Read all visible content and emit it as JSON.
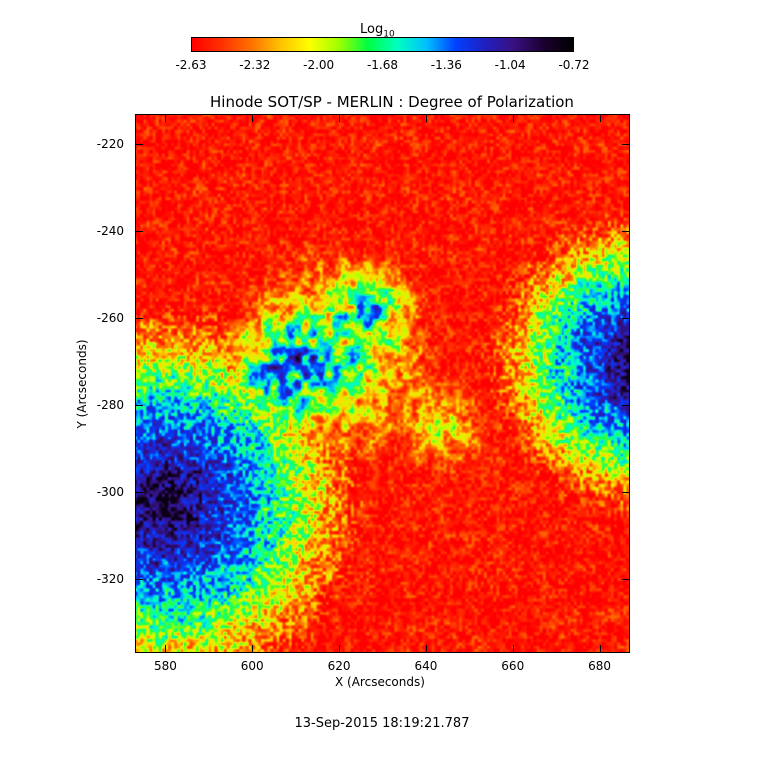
{
  "colorbar": {
    "title_base": "Log",
    "title_sub": "10",
    "tick_labels": [
      "-2.63",
      "-2.32",
      "-2.00",
      "-1.68",
      "-1.36",
      "-1.04",
      "-0.72"
    ],
    "colors": [
      "#ff0000",
      "#ff3000",
      "#ff7000",
      "#ffc000",
      "#ffff00",
      "#a0ff00",
      "#00ff40",
      "#00ffc0",
      "#00c0ff",
      "#0040ff",
      "#2020c0",
      "#3a1080",
      "#1a0030",
      "#000000"
    ]
  },
  "plot": {
    "title": "Hinode SOT/SP - MERLIN : Degree of Polarization",
    "xlabel": "X (Arcseconds)",
    "ylabel": "Y (Arcseconds)",
    "x_range": [
      573,
      687
    ],
    "y_range": [
      -337,
      -213
    ],
    "x_ticks": [
      "580",
      "600",
      "620",
      "640",
      "660",
      "680"
    ],
    "y_ticks": [
      "-220",
      "-240",
      "-260",
      "-280",
      "-300",
      "-320"
    ],
    "timestamp": "13-Sep-2015 18:19:21.787"
  }
}
